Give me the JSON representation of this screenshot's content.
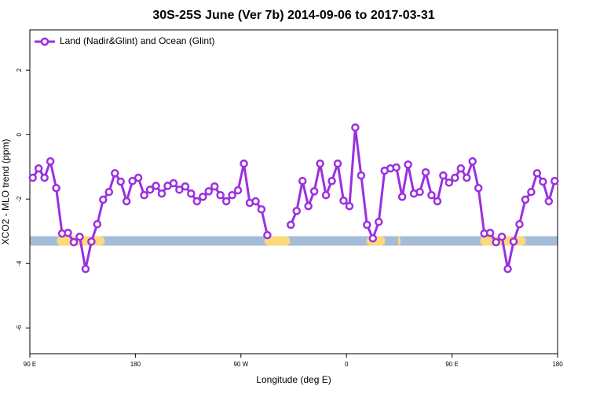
{
  "chart_data": {
    "type": "line",
    "title": "30S-25S June (Ver 7b)   2014-09-06 to 2017-03-31",
    "x_label": "Longitude (deg E)",
    "y_label": "XCO2 - MLO trend (ppm)",
    "xlim": [
      90,
      540
    ],
    "ylim": [
      -6.8,
      3.25
    ],
    "xticks": [
      {
        "value": 90,
        "label": "90 E"
      },
      {
        "value": 180,
        "label": "180"
      },
      {
        "value": 270,
        "label": "90 W"
      },
      {
        "value": 360,
        "label": "0"
      },
      {
        "value": 450,
        "label": "90 E"
      },
      {
        "value": 540,
        "label": "180"
      }
    ],
    "yticks": [
      -6,
      -4,
      -2,
      0,
      2
    ],
    "legend": "top-left",
    "band": {
      "y": -3.3,
      "color": "#a5bcd9",
      "land_color": "#fcd97a",
      "land": [
        [
          113,
          154
        ],
        [
          290,
          312
        ],
        [
          377,
          393
        ],
        [
          404,
          406
        ],
        [
          474,
          513
        ]
      ]
    },
    "x": [
      92.5,
      97.5,
      102.5,
      107.5,
      112.5,
      117.5,
      122.5,
      127.5,
      132.5,
      137.5,
      142.5,
      147.5,
      152.5,
      157.5,
      162.5,
      167.5,
      172.5,
      177.5,
      182.5,
      187.5,
      192.5,
      197.5,
      202.5,
      207.5,
      212.5,
      217.5,
      222.5,
      227.5,
      232.5,
      237.5,
      242.5,
      247.5,
      252.5,
      257.5,
      262.5,
      267.5,
      272.5,
      277.5,
      282.5,
      287.5,
      292.5,
      297.5,
      302.5,
      307.5,
      312.5,
      317.5,
      322.5,
      327.5,
      332.5,
      337.5,
      342.5,
      347.5,
      352.5,
      357.5,
      362.5,
      367.5,
      372.5,
      377.5,
      382.5,
      387.5,
      392.5,
      397.5,
      402.5,
      407.5,
      412.5,
      417.5,
      422.5,
      427.5,
      432.5,
      437.5,
      442.5,
      447.5,
      452.5,
      457.5,
      462.5,
      467.5,
      472.5,
      477.5,
      482.5,
      487.5,
      492.5,
      497.5,
      502.5,
      507.5,
      512.5,
      517.5,
      522.5,
      527.5,
      532.5,
      537.5
    ],
    "series": [
      {
        "name": "Land (Nadir&Glint) and Ocean (Glint)",
        "color": "#9b30e0",
        "values": [
          -1.34,
          -1.05,
          -1.34,
          -0.83,
          -1.66,
          -3.07,
          -3.05,
          -3.34,
          -3.17,
          -4.17,
          -3.32,
          -2.78,
          -2.02,
          -1.78,
          -1.2,
          -1.46,
          -2.07,
          -1.44,
          -1.34,
          -1.88,
          -1.71,
          -1.59,
          -1.83,
          -1.59,
          -1.51,
          -1.71,
          -1.61,
          -1.83,
          -2.07,
          -1.93,
          -1.76,
          -1.61,
          -1.88,
          -2.07,
          -1.88,
          -1.73,
          -0.9,
          -2.12,
          -2.07,
          -2.32,
          -3.12,
          null,
          null,
          null,
          -2.8,
          -2.37,
          -1.44,
          -2.22,
          -1.76,
          -0.9,
          -1.88,
          -1.44,
          -0.9,
          -2.05,
          -2.22,
          0.22,
          -1.27,
          -2.8,
          -3.22,
          -2.71,
          -1.12,
          -1.05,
          -1.02,
          -1.93,
          -0.93,
          -1.83,
          -1.78,
          -1.17,
          -1.88,
          -2.07,
          -1.27,
          -1.49,
          -1.34,
          -1.05,
          -1.34,
          -0.83,
          -1.66,
          -3.07,
          -3.05,
          -3.34,
          -3.17,
          -4.17,
          -3.32,
          -2.78,
          -2.02,
          -1.78,
          -1.2,
          -1.46,
          -2.07,
          -1.44
        ]
      }
    ]
  }
}
